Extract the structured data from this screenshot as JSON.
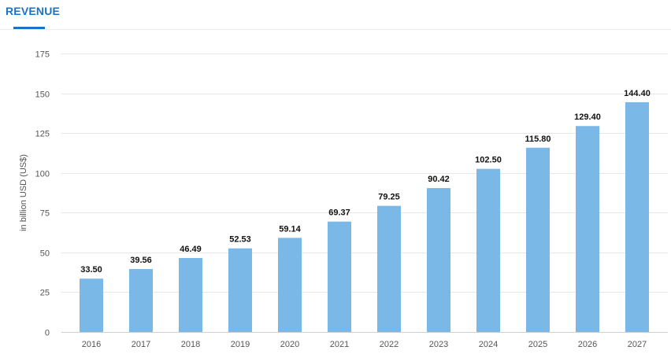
{
  "tabs": {
    "active_label": "REVENUE"
  },
  "colors": {
    "accent": "#1a73c7",
    "bar": "#7ab8e8",
    "grid": "#e6e6e6"
  },
  "chart_data": {
    "type": "bar",
    "categories": [
      "2016",
      "2017",
      "2018",
      "2019",
      "2020",
      "2021",
      "2022",
      "2023",
      "2024",
      "2025",
      "2026",
      "2027"
    ],
    "values": [
      33.5,
      39.56,
      46.49,
      52.53,
      59.14,
      69.37,
      79.25,
      90.42,
      102.5,
      115.8,
      129.4,
      144.4
    ],
    "value_labels": [
      "33.50",
      "39.56",
      "46.49",
      "52.53",
      "59.14",
      "69.37",
      "79.25",
      "90.42",
      "102.50",
      "115.80",
      "129.40",
      "144.40"
    ],
    "title": "",
    "xlabel": "",
    "ylabel": "in billion USD (US$)",
    "ylim": [
      0,
      175
    ],
    "yticks": [
      0,
      25,
      50,
      75,
      100,
      125,
      150,
      175
    ],
    "grid": true,
    "legend": "none"
  }
}
